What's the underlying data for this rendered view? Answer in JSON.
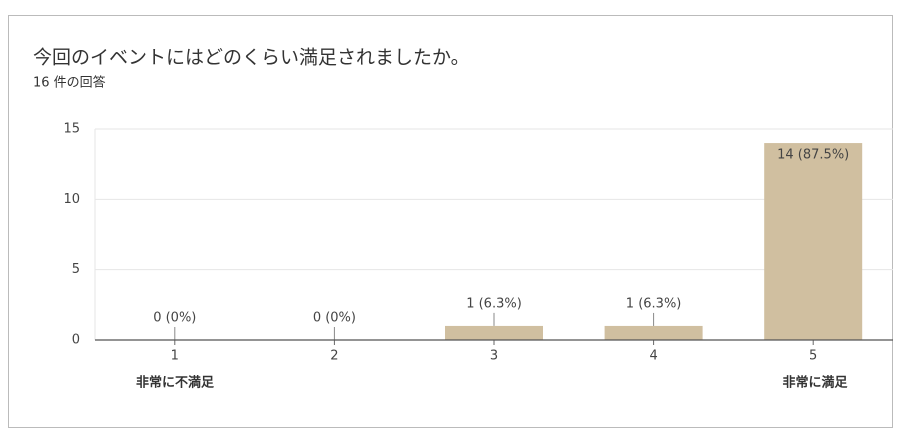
{
  "chart_data": {
    "type": "bar",
    "title": "今回のイベントにはどのくらい満足されましたか。",
    "subtitle": "16 件の回答",
    "categories": [
      "1",
      "2",
      "3",
      "4",
      "5"
    ],
    "values": [
      0,
      0,
      1,
      1,
      14
    ],
    "value_labels": [
      "0 (0%)",
      "0 (0%)",
      "1 (6.3%)",
      "1 (6.3%)",
      "14 (87.5%)"
    ],
    "color": "#d0bfa0",
    "ylim": [
      0,
      15
    ],
    "yticks": [
      0,
      5,
      10,
      15
    ],
    "grid": true,
    "scale_labels": {
      "low": "非常に不満足",
      "high": "非常に満足"
    }
  }
}
